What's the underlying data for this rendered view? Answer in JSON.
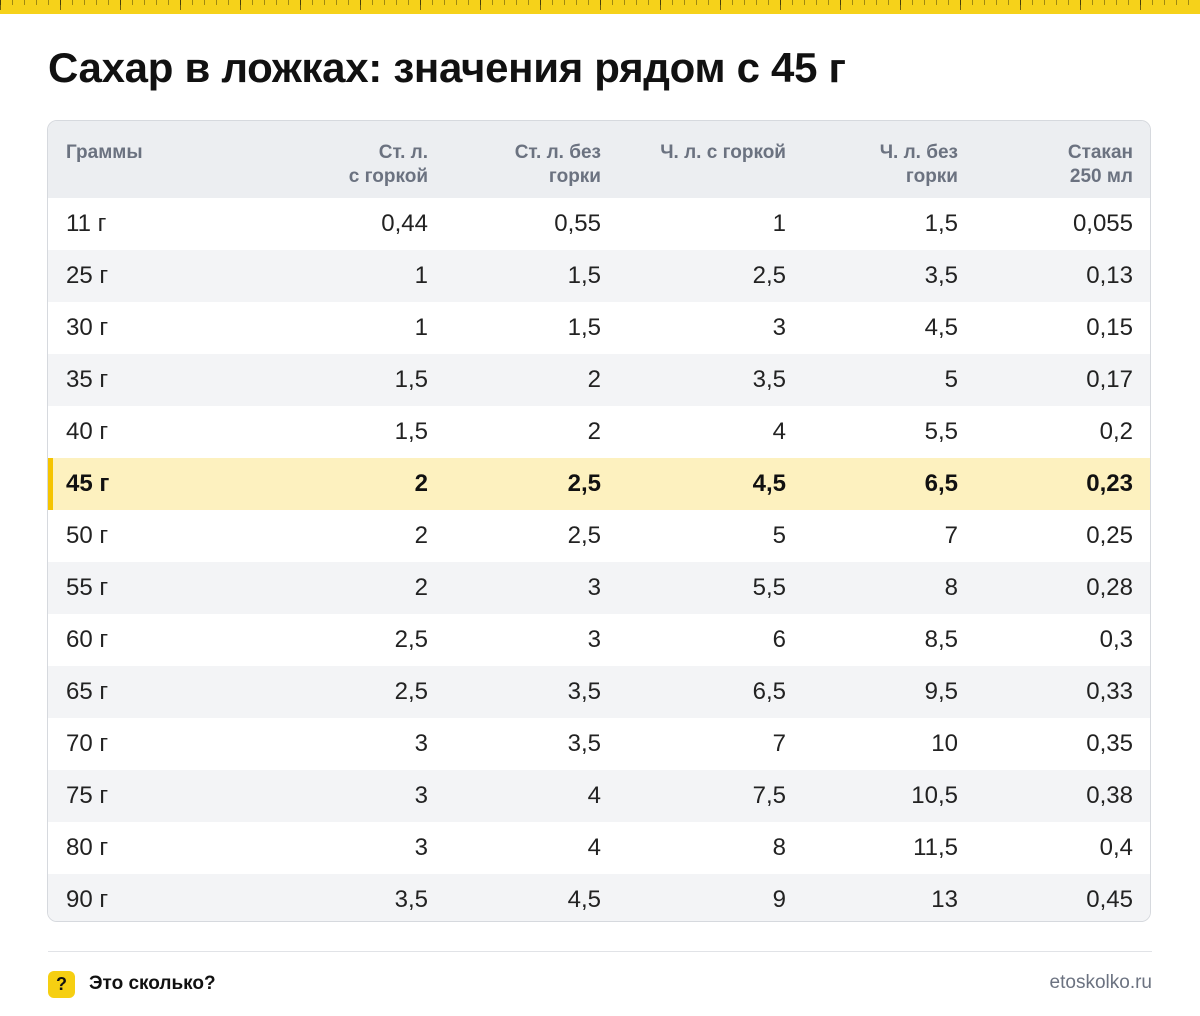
{
  "title": "Сахар в ложках: значения рядом с 45 г",
  "table": {
    "headers": [
      "Граммы",
      "Ст. л.\nс горкой",
      "Ст. л. без\nгорки",
      "Ч. л. с горкой",
      "Ч. л. без\nгорки",
      "Стакан\n250 мл"
    ],
    "highlight_row": 5,
    "rows": [
      [
        "11 г",
        "0,44",
        "0,55",
        "1",
        "1,5",
        "0,055"
      ],
      [
        "25 г",
        "1",
        "1,5",
        "2,5",
        "3,5",
        "0,13"
      ],
      [
        "30 г",
        "1",
        "1,5",
        "3",
        "4,5",
        "0,15"
      ],
      [
        "35 г",
        "1,5",
        "2",
        "3,5",
        "5",
        "0,17"
      ],
      [
        "40 г",
        "1,5",
        "2",
        "4",
        "5,5",
        "0,2"
      ],
      [
        "45 г",
        "2",
        "2,5",
        "4,5",
        "6,5",
        "0,23"
      ],
      [
        "50 г",
        "2",
        "2,5",
        "5",
        "7",
        "0,25"
      ],
      [
        "55 г",
        "2",
        "3",
        "5,5",
        "8",
        "0,28"
      ],
      [
        "60 г",
        "2,5",
        "3",
        "6",
        "8,5",
        "0,3"
      ],
      [
        "65 г",
        "2,5",
        "3,5",
        "6,5",
        "9,5",
        "0,33"
      ],
      [
        "70 г",
        "3",
        "3,5",
        "7",
        "10",
        "0,35"
      ],
      [
        "75 г",
        "3",
        "4",
        "7,5",
        "10,5",
        "0,38"
      ],
      [
        "80 г",
        "3",
        "4",
        "8",
        "11,5",
        "0,4"
      ],
      [
        "90 г",
        "3,5",
        "4,5",
        "9",
        "13",
        "0,45"
      ]
    ]
  },
  "footer": {
    "icon": "question-mark-icon",
    "icon_glyph": "?",
    "brand": "Это сколько?",
    "site": "etoskolko.ru"
  },
  "colors": {
    "accent": "#f6d21a",
    "highlight_row": "#fdf1bf",
    "header_bg": "#eceef1"
  }
}
